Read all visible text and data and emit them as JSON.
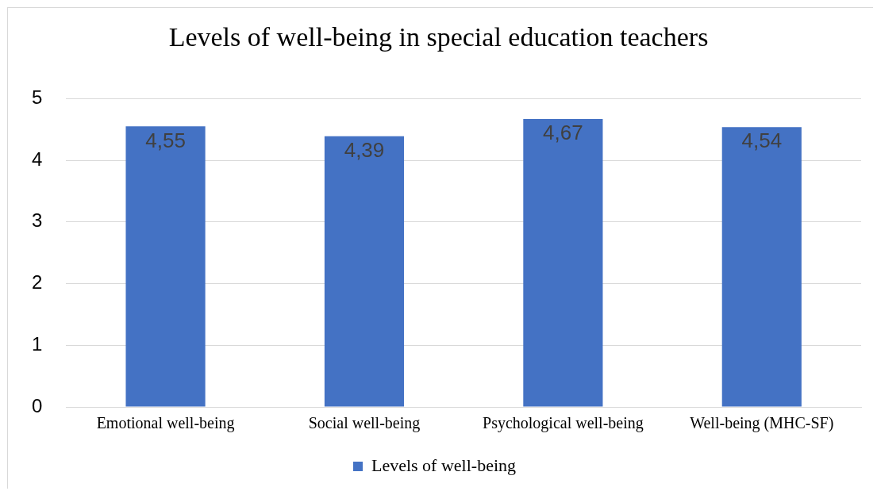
{
  "chart_data": {
    "type": "bar",
    "title": "Levels of well-being in special education teachers",
    "categories": [
      "Emotional well-being",
      "Social well-being",
      "Psychological well-being",
      "Well-being (MHC-SF)"
    ],
    "series": [
      {
        "name": "Levels of well-being",
        "color": "#4472c4",
        "values": [
          4.55,
          4.39,
          4.67,
          4.54
        ],
        "value_labels": [
          "4,55",
          "4,39",
          "4,67",
          "4,54"
        ]
      }
    ],
    "ylim": [
      0,
      5
    ],
    "yticks": [
      0,
      1,
      2,
      3,
      4,
      5
    ],
    "grid": "y",
    "legend": "bottom"
  }
}
